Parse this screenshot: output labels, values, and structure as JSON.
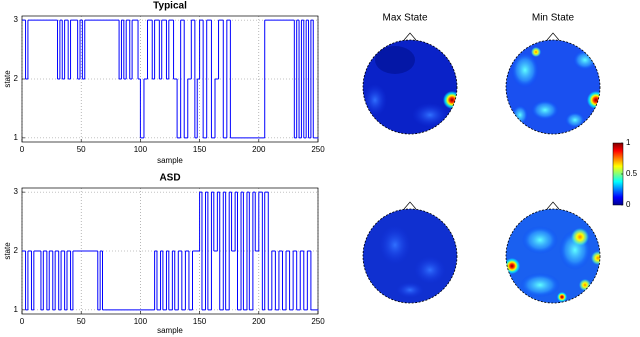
{
  "chart_data": [
    {
      "type": "line",
      "step": true,
      "title": "Typical",
      "xlabel": "sample",
      "ylabel": "state",
      "color": "#0000ff",
      "x": [
        0,
        3,
        5,
        30,
        32,
        34,
        36,
        39,
        41,
        47,
        49,
        51,
        53,
        82,
        84,
        86,
        88,
        91,
        93,
        98,
        100,
        103,
        106,
        110,
        112,
        116,
        118,
        122,
        124,
        128,
        131,
        134,
        137,
        140,
        143,
        146,
        148,
        150,
        153,
        156,
        160,
        163,
        166,
        170,
        173,
        176,
        205,
        230,
        232,
        234,
        236,
        238,
        240,
        242,
        244,
        246,
        250
      ],
      "values": [
        3,
        2,
        3,
        2,
        3,
        2,
        3,
        2,
        3,
        2,
        3,
        2,
        3,
        2,
        3,
        2,
        3,
        2,
        3,
        2,
        1,
        2,
        3,
        2,
        3,
        2,
        3,
        2,
        3,
        2,
        1,
        3,
        1,
        2,
        3,
        1,
        2,
        3,
        1,
        3,
        1,
        2,
        3,
        1,
        3,
        1,
        3,
        1,
        3,
        1,
        3,
        1,
        3,
        1,
        3,
        1,
        1
      ],
      "xlim": [
        0,
        250
      ],
      "xticks": [
        0,
        50,
        100,
        150,
        200,
        250
      ],
      "ylim": [
        0.93,
        3.07
      ],
      "yticks": [
        1,
        2,
        3
      ],
      "grid": true
    },
    {
      "type": "line",
      "step": true,
      "title": "ASD",
      "xlabel": "sample",
      "ylabel": "state",
      "color": "#0000ff",
      "x": [
        0,
        3,
        5,
        8,
        10,
        16,
        18,
        21,
        23,
        26,
        28,
        31,
        33,
        36,
        38,
        41,
        43,
        46,
        64,
        66,
        68,
        70,
        112,
        114,
        117,
        119,
        122,
        124,
        127,
        129,
        132,
        135,
        138,
        141,
        144,
        150,
        152,
        155,
        157,
        160,
        162,
        165,
        167,
        170,
        172,
        175,
        177,
        180,
        182,
        185,
        187,
        190,
        192,
        195,
        197,
        200,
        203,
        205,
        208,
        211,
        214,
        217,
        220,
        223,
        226,
        229,
        232,
        235,
        238,
        241,
        244,
        250
      ],
      "values": [
        2,
        1,
        2,
        1,
        2,
        1,
        2,
        1,
        2,
        1,
        2,
        1,
        2,
        1,
        2,
        1,
        2,
        2,
        1,
        2,
        1,
        1,
        2,
        1,
        2,
        1,
        2,
        1,
        2,
        1,
        2,
        1,
        2,
        1,
        2,
        3,
        1,
        3,
        1,
        3,
        2,
        3,
        1,
        3,
        1,
        3,
        2,
        3,
        1,
        3,
        1,
        3,
        1,
        3,
        2,
        3,
        1,
        3,
        1,
        2,
        1,
        2,
        1,
        2,
        1,
        2,
        1,
        2,
        1,
        2,
        1,
        1
      ],
      "xlim": [
        0,
        250
      ],
      "xticks": [
        0,
        50,
        100,
        150,
        200,
        250
      ],
      "ylim": [
        0.93,
        3.07
      ],
      "yticks": [
        1,
        2,
        3
      ],
      "grid": true
    },
    {
      "type": "topomap",
      "titles": [
        "Max State",
        "Min State"
      ],
      "clim": [
        0,
        1
      ],
      "cticks": [
        0,
        0.5,
        1
      ]
    }
  ]
}
